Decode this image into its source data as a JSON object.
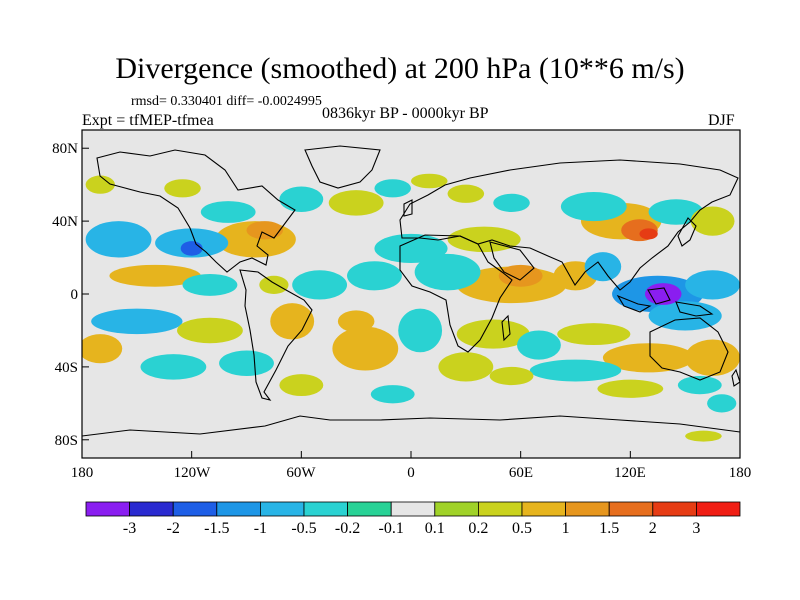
{
  "title": "Divergence (smoothed) at 200 hPa (10**6 m/s)",
  "stats": "rmsd= 0.330401 diff= -0.0024995",
  "expt": "Expt = tfMEP-tfmea",
  "period": "0836kyr BP - 0000kyr BP",
  "season": "DJF",
  "lat_ticks": [
    "80N",
    "40N",
    "0",
    "40S",
    "80S"
  ],
  "lon_ticks": [
    "180",
    "120W",
    "60W",
    "0",
    "60E",
    "120E",
    "180"
  ],
  "colorbar": {
    "labels": [
      "-3",
      "-2",
      "-1.5",
      "-1",
      "-0.5",
      "-0.2",
      "-0.1",
      "0.1",
      "0.2",
      "0.5",
      "1",
      "1.5",
      "2",
      "3"
    ],
    "colors": [
      "#8a1ef0",
      "#2a2ad0",
      "#1e5ee6",
      "#1e96e6",
      "#28b4e6",
      "#2ad2d2",
      "#28d296",
      "#e6e6e6",
      "#a0d228",
      "#cad21e",
      "#e6b41e",
      "#e6961e",
      "#e66e1e",
      "#e63c14",
      "#f01e14"
    ]
  },
  "chart_data": {
    "type": "heatmap",
    "variable": "Divergence (smoothed) at 200 hPa",
    "units": "10**6 m/s",
    "lon_range": [
      -180,
      180
    ],
    "lat_range": [
      -90,
      90
    ],
    "contour_levels": [
      -3,
      -2,
      -1.5,
      -1,
      -0.5,
      -0.2,
      -0.1,
      0.1,
      0.2,
      0.5,
      1,
      1.5,
      2,
      3
    ],
    "blobs": [
      {
        "lon": 138,
        "lat": 0,
        "rx": 10,
        "ry": 6,
        "value": -3.2
      },
      {
        "lon": 135,
        "lat": 0,
        "rx": 25,
        "ry": 10,
        "value": -1.3
      },
      {
        "lon": 150,
        "lat": -12,
        "rx": 20,
        "ry": 8,
        "value": -0.8
      },
      {
        "lon": 165,
        "lat": 5,
        "rx": 15,
        "ry": 8,
        "value": -0.6
      },
      {
        "lon": 115,
        "lat": 40,
        "rx": 22,
        "ry": 10,
        "value": 0.9
      },
      {
        "lon": 125,
        "lat": 35,
        "rx": 10,
        "ry": 6,
        "value": 1.6
      },
      {
        "lon": 130,
        "lat": 33,
        "rx": 5,
        "ry": 3,
        "value": 2.2
      },
      {
        "lon": 105,
        "lat": 15,
        "rx": 10,
        "ry": 8,
        "value": -0.6
      },
      {
        "lon": 90,
        "lat": 10,
        "rx": 12,
        "ry": 8,
        "value": 0.6
      },
      {
        "lon": 100,
        "lat": 48,
        "rx": 18,
        "ry": 8,
        "value": -0.4
      },
      {
        "lon": 145,
        "lat": 45,
        "rx": 15,
        "ry": 7,
        "value": -0.5
      },
      {
        "lon": 165,
        "lat": 40,
        "rx": 12,
        "ry": 8,
        "value": 0.4
      },
      {
        "lon": 130,
        "lat": -35,
        "rx": 25,
        "ry": 8,
        "value": 0.6
      },
      {
        "lon": 165,
        "lat": -35,
        "rx": 15,
        "ry": 10,
        "value": 0.8
      },
      {
        "lon": 100,
        "lat": -22,
        "rx": 20,
        "ry": 6,
        "value": 0.4
      },
      {
        "lon": 90,
        "lat": -42,
        "rx": 25,
        "ry": 6,
        "value": -0.5
      },
      {
        "lon": 120,
        "lat": -52,
        "rx": 18,
        "ry": 5,
        "value": 0.3
      },
      {
        "lon": 158,
        "lat": -50,
        "rx": 12,
        "ry": 5,
        "value": -0.3
      },
      {
        "lon": 170,
        "lat": -60,
        "rx": 8,
        "ry": 5,
        "value": -0.5
      },
      {
        "lon": 160,
        "lat": -78,
        "rx": 10,
        "ry": 3,
        "value": 0.4
      },
      {
        "lon": 55,
        "lat": 5,
        "rx": 30,
        "ry": 10,
        "value": 0.7
      },
      {
        "lon": 60,
        "lat": 10,
        "rx": 12,
        "ry": 6,
        "value": 1.1
      },
      {
        "lon": 40,
        "lat": 30,
        "rx": 20,
        "ry": 7,
        "value": 0.4
      },
      {
        "lon": 30,
        "lat": 55,
        "rx": 10,
        "ry": 5,
        "value": 0.3
      },
      {
        "lon": 55,
        "lat": 50,
        "rx": 10,
        "ry": 5,
        "value": -0.3
      },
      {
        "lon": 20,
        "lat": 12,
        "rx": 18,
        "ry": 10,
        "value": -0.4
      },
      {
        "lon": 0,
        "lat": 25,
        "rx": 20,
        "ry": 8,
        "value": -0.4
      },
      {
        "lon": 45,
        "lat": -22,
        "rx": 20,
        "ry": 8,
        "value": 0.4
      },
      {
        "lon": 30,
        "lat": -40,
        "rx": 15,
        "ry": 8,
        "value": 0.4
      },
      {
        "lon": 70,
        "lat": -28,
        "rx": 12,
        "ry": 8,
        "value": -0.4
      },
      {
        "lon": 55,
        "lat": -45,
        "rx": 12,
        "ry": 5,
        "value": 0.3
      },
      {
        "lon": 5,
        "lat": -20,
        "rx": 12,
        "ry": 12,
        "value": -0.4
      },
      {
        "lon": -25,
        "lat": -30,
        "rx": 18,
        "ry": 12,
        "value": 0.5
      },
      {
        "lon": -30,
        "lat": -15,
        "rx": 10,
        "ry": 6,
        "value": 0.7
      },
      {
        "lon": -20,
        "lat": 10,
        "rx": 15,
        "ry": 8,
        "value": -0.4
      },
      {
        "lon": -50,
        "lat": 5,
        "rx": 15,
        "ry": 8,
        "value": -0.3
      },
      {
        "lon": -65,
        "lat": -15,
        "rx": 12,
        "ry": 10,
        "value": 0.6
      },
      {
        "lon": -75,
        "lat": 5,
        "rx": 8,
        "ry": 5,
        "value": 0.3
      },
      {
        "lon": -85,
        "lat": 30,
        "rx": 22,
        "ry": 10,
        "value": 0.7
      },
      {
        "lon": -80,
        "lat": 35,
        "rx": 10,
        "ry": 5,
        "value": 1.2
      },
      {
        "lon": -120,
        "lat": 28,
        "rx": 20,
        "ry": 8,
        "value": -0.9
      },
      {
        "lon": -120,
        "lat": 25,
        "rx": 6,
        "ry": 4,
        "value": -1.6
      },
      {
        "lon": -160,
        "lat": 30,
        "rx": 18,
        "ry": 10,
        "value": -0.6
      },
      {
        "lon": -140,
        "lat": 10,
        "rx": 25,
        "ry": 6,
        "value": 0.7
      },
      {
        "lon": -110,
        "lat": 5,
        "rx": 15,
        "ry": 6,
        "value": -0.4
      },
      {
        "lon": -150,
        "lat": -15,
        "rx": 25,
        "ry": 7,
        "value": -0.6
      },
      {
        "lon": -110,
        "lat": -20,
        "rx": 18,
        "ry": 7,
        "value": 0.4
      },
      {
        "lon": -170,
        "lat": -30,
        "rx": 12,
        "ry": 8,
        "value": 0.6
      },
      {
        "lon": -130,
        "lat": -40,
        "rx": 18,
        "ry": 7,
        "value": -0.5
      },
      {
        "lon": -90,
        "lat": -38,
        "rx": 15,
        "ry": 7,
        "value": -0.4
      },
      {
        "lon": -60,
        "lat": -50,
        "rx": 12,
        "ry": 6,
        "value": 0.3
      },
      {
        "lon": -10,
        "lat": -55,
        "rx": 12,
        "ry": 5,
        "value": -0.3
      },
      {
        "lon": -30,
        "lat": 50,
        "rx": 15,
        "ry": 7,
        "value": 0.3
      },
      {
        "lon": -60,
        "lat": 52,
        "rx": 12,
        "ry": 7,
        "value": -0.4
      },
      {
        "lon": -100,
        "lat": 45,
        "rx": 15,
        "ry": 6,
        "value": -0.3
      },
      {
        "lon": -10,
        "lat": 58,
        "rx": 10,
        "ry": 5,
        "value": -0.3
      },
      {
        "lon": 10,
        "lat": 62,
        "rx": 10,
        "ry": 4,
        "value": 0.3
      },
      {
        "lon": -125,
        "lat": 58,
        "rx": 10,
        "ry": 5,
        "value": 0.2
      },
      {
        "lon": -170,
        "lat": 60,
        "rx": 8,
        "ry": 5,
        "value": 0.2
      }
    ]
  }
}
